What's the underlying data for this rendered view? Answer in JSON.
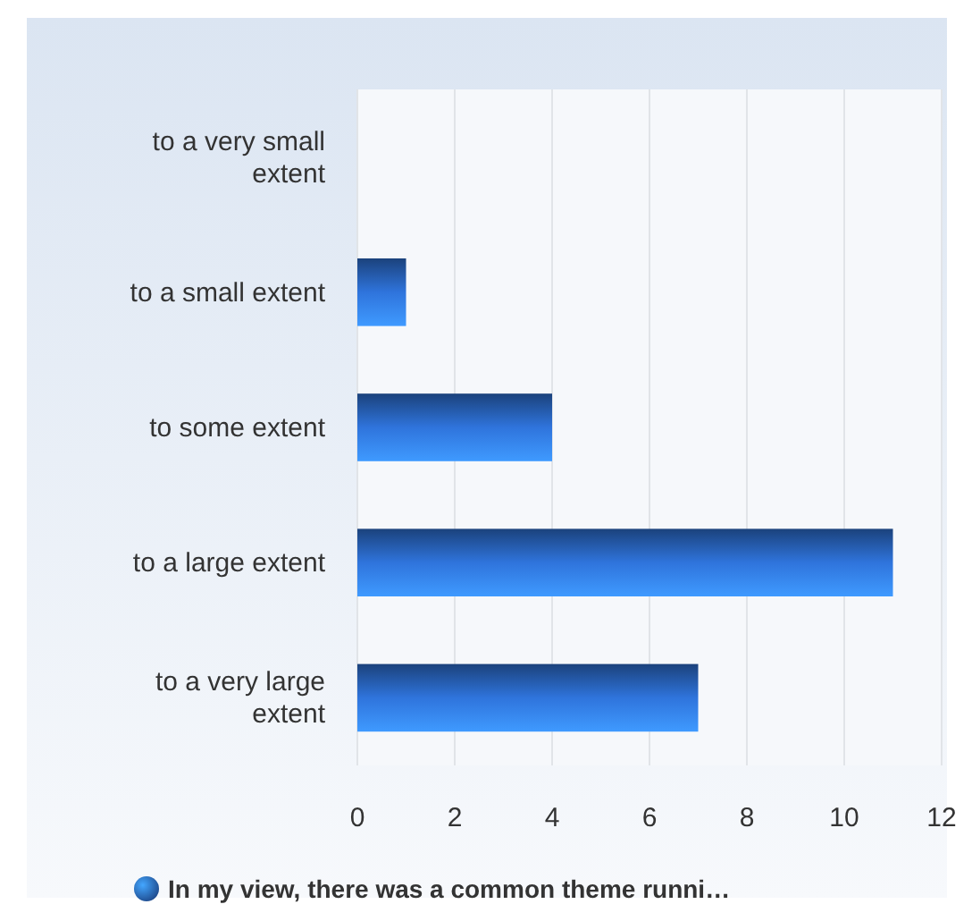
{
  "chart_data": {
    "type": "bar",
    "orientation": "horizontal",
    "categories": [
      "to a very small extent",
      "to a small extent",
      "to some extent",
      "to a large extent",
      "to a very large extent"
    ],
    "series": [
      {
        "name": "In my view, there was a common theme runni…",
        "color": "#2f74dc",
        "values": [
          0,
          1,
          4,
          11,
          7
        ]
      }
    ],
    "xlim": [
      0,
      12
    ],
    "xticks": [
      0,
      2,
      4,
      6,
      8,
      10,
      12
    ],
    "grid": "x",
    "legend": "bottom"
  }
}
